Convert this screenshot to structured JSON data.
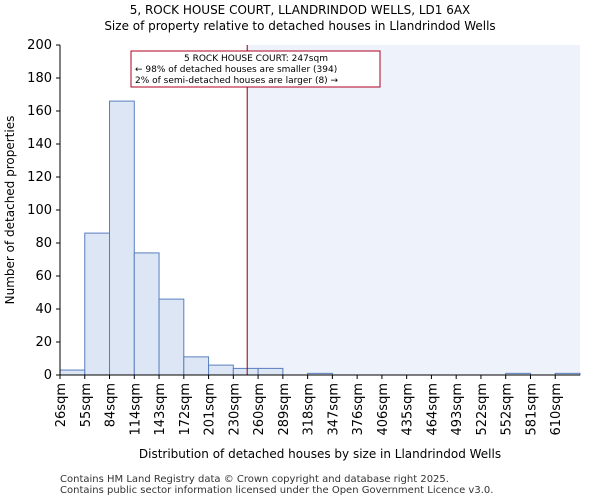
{
  "page": {
    "title_line1": "5, ROCK HOUSE COURT, LLANDRINDOD WELLS, LD1 6AX",
    "title_line2": "Size of property relative to detached houses in Llandrindod Wells",
    "footer_line1": "Contains HM Land Registry data © Crown copyright and database right 2025.",
    "footer_line2": "Contains public sector information licensed under the Open Government Licence v3.0."
  },
  "chart_data": {
    "type": "bar",
    "title": "Size of property relative to detached houses in Llandrindod Wells",
    "xlabel": "Distribution of detached houses by size in Llandrindod Wells",
    "ylabel": "Number of detached properties",
    "categories": [
      "26sqm",
      "55sqm",
      "84sqm",
      "114sqm",
      "143sqm",
      "172sqm",
      "201sqm",
      "230sqm",
      "260sqm",
      "289sqm",
      "318sqm",
      "347sqm",
      "376sqm",
      "406sqm",
      "435sqm",
      "464sqm",
      "493sqm",
      "522sqm",
      "552sqm",
      "581sqm",
      "610sqm"
    ],
    "values": [
      3,
      86,
      166,
      74,
      46,
      11,
      6,
      4,
      4,
      0,
      1,
      0,
      0,
      0,
      0,
      0,
      0,
      0,
      1,
      0,
      1
    ],
    "ylim": [
      0,
      200
    ],
    "yticks": [
      0,
      20,
      40,
      60,
      80,
      100,
      120,
      140,
      160,
      180,
      200
    ],
    "marker": {
      "value_sqm": 247,
      "bin_position": 7.56,
      "line_color": "#8b0000"
    },
    "annotation": {
      "line1": "5 ROCK HOUSE COURT: 247sqm",
      "line2": "← 98% of detached houses are smaller (394)",
      "line3": "2% of semi-detached houses are larger (8) →"
    },
    "colors": {
      "bar_fill": "#dce6f4",
      "bar_stroke": "#5a7fc0",
      "highlight_fill": "#eef2fb",
      "annotation_border": "#b00020"
    }
  }
}
